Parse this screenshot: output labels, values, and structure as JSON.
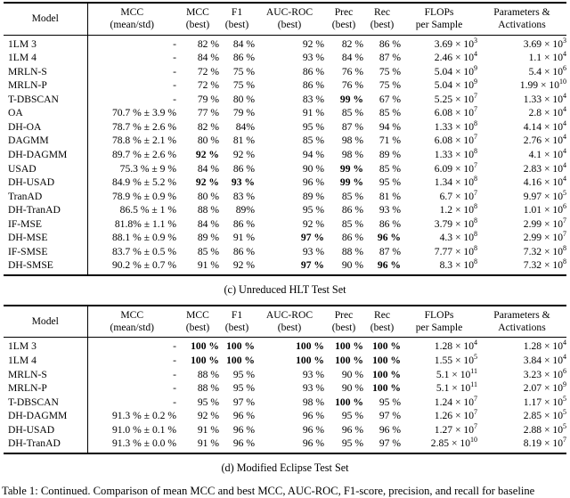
{
  "columns": [
    {
      "l1": "Model",
      "l2": ""
    },
    {
      "l1": "MCC",
      "l2": "(mean/std)"
    },
    {
      "l1": "MCC",
      "l2": "(best)"
    },
    {
      "l1": "F1",
      "l2": "(best)"
    },
    {
      "l1": "AUC-ROC",
      "l2": "(best)"
    },
    {
      "l1": "Prec",
      "l2": "(best)"
    },
    {
      "l1": "Rec",
      "l2": "(best)"
    },
    {
      "l1": "FLOPs",
      "l2": "per Sample"
    },
    {
      "l1": "Parameters &",
      "l2": "Activations"
    }
  ],
  "tables": [
    {
      "caption": "(c) Unreduced HLT Test Set",
      "rows": [
        {
          "cells": [
            "1LM 3",
            "-",
            "82 %",
            "84 %",
            "92 %",
            "82 %",
            "86 %",
            "3.69 × 10^3",
            "3.69 × 10^3"
          ],
          "bold": []
        },
        {
          "cells": [
            "1LM 4",
            "-",
            "84 %",
            "86 %",
            "93 %",
            "84 %",
            "87 %",
            "2.46 × 10^4",
            "1.1 × 10^4"
          ],
          "bold": []
        },
        {
          "cells": [
            "MRLN-S",
            "-",
            "72 %",
            "75 %",
            "86 %",
            "76 %",
            "75 %",
            "5.04 × 10^9",
            "5.4 × 10^6"
          ],
          "bold": []
        },
        {
          "cells": [
            "MRLN-P",
            "-",
            "72 %",
            "75 %",
            "86 %",
            "76 %",
            "75 %",
            "5.04 × 10^9",
            "1.99 × 10^10"
          ],
          "bold": []
        },
        {
          "cells": [
            "T-DBSCAN",
            "-",
            "79 %",
            "80 %",
            "83 %",
            "99 %",
            "67 %",
            "5.25 × 10^7",
            "1.33 × 10^4"
          ],
          "bold": [
            5
          ]
        },
        {
          "cells": [
            "OA",
            "70.7 % ± 3.9 %",
            "77 %",
            "79 %",
            "91 %",
            "85 %",
            "85 %",
            "6.08 × 10^7",
            "2.8 × 10^4"
          ],
          "bold": []
        },
        {
          "cells": [
            "DH-OA",
            "78.7 % ± 2.6 %",
            "82 %",
            "84%",
            "95 %",
            "87 %",
            "94 %",
            "1.33 × 10^8",
            "4.14 × 10^4"
          ],
          "bold": []
        },
        {
          "cells": [
            "DAGMM",
            "78.8 % ± 2.1 %",
            "80 %",
            "81 %",
            "85 %",
            "98 %",
            "71 %",
            "6.08 × 10^7",
            "2.76 × 10^4"
          ],
          "bold": []
        },
        {
          "cells": [
            "DH-DAGMM",
            "89.7 % ± 2.6 %",
            "92 %",
            "92 %",
            "94 %",
            "98 %",
            "89 %",
            "1.33 × 10^8",
            "4.1 × 10^4"
          ],
          "bold": [
            2
          ]
        },
        {
          "cells": [
            "USAD",
            "75.3 % ± 9 %",
            "84 %",
            "86 %",
            "90 %",
            "99 %",
            "85 %",
            "6.09 × 10^7",
            "2.83 × 10^4"
          ],
          "bold": [
            5
          ]
        },
        {
          "cells": [
            "DH-USAD",
            "84.9 % ± 5.2 %",
            "92 %",
            "93 %",
            "96 %",
            "99 %",
            "95 %",
            "1.34 × 10^8",
            "4.16 × 10^4"
          ],
          "bold": [
            2,
            3,
            5
          ]
        },
        {
          "cells": [
            "TranAD",
            "78.9 % ± 0.9 %",
            "80 %",
            "83 %",
            "89 %",
            "85 %",
            "81 %",
            "6.7 × 10^7",
            "9.97 × 10^5"
          ],
          "bold": []
        },
        {
          "cells": [
            "DH-TranAD",
            "86.5 % ± 1 %",
            "88 %",
            "89%",
            "95 %",
            "86 %",
            "93 %",
            "1.2 × 10^8",
            "1.01 × 10^6"
          ],
          "bold": []
        },
        {
          "cells": [
            "IF-MSE",
            "81.8% ± 1.1 %",
            "84 %",
            "86 %",
            "92 %",
            "85 %",
            "86 %",
            "3.79 × 10^8",
            "2.99 × 10^7"
          ],
          "bold": []
        },
        {
          "cells": [
            "DH-MSE",
            "88.1 % ± 0.9 %",
            "89 %",
            "91 %",
            "97 %",
            "86 %",
            "96 %",
            "4.3 × 10^8",
            "2.99 × 10^7"
          ],
          "bold": [
            4,
            6
          ]
        },
        {
          "cells": [
            "IF-SMSE",
            "83.7 % ± 0.5 %",
            "85 %",
            "86 %",
            "93 %",
            "88 %",
            "87 %",
            "7.77 × 10^8",
            "7.32 × 10^8"
          ],
          "bold": []
        },
        {
          "cells": [
            "DH-SMSE",
            "90.2 % ± 0.7 %",
            "91 %",
            "92 %",
            "97 %",
            "90 %",
            "96 %",
            "8.3 × 10^8",
            "7.32 × 10^8"
          ],
          "bold": [
            4,
            6
          ]
        }
      ]
    },
    {
      "caption": "(d) Modified Eclipse Test Set",
      "rows": [
        {
          "cells": [
            "1LM 3",
            "-",
            "100 %",
            "100 %",
            "100 %",
            "100 %",
            "100 %",
            "1.28 × 10^4",
            "1.28 × 10^4"
          ],
          "bold": [
            2,
            3,
            4,
            5,
            6
          ]
        },
        {
          "cells": [
            "1LM 4",
            "-",
            "100 %",
            "100 %",
            "100 %",
            "100 %",
            "100 %",
            "1.55 × 10^5",
            "3.84 × 10^4"
          ],
          "bold": [
            2,
            3,
            4,
            5,
            6
          ]
        },
        {
          "cells": [
            "MRLN-S",
            "-",
            "88 %",
            "95 %",
            "93 %",
            "90 %",
            "100 %",
            "5.1 × 10^11",
            "3.23 × 10^6"
          ],
          "bold": [
            6
          ]
        },
        {
          "cells": [
            "MRLN-P",
            "-",
            "88 %",
            "95 %",
            "93 %",
            "90 %",
            "100 %",
            "5.1 × 10^11",
            "2.07 × 10^9"
          ],
          "bold": [
            6
          ]
        },
        {
          "cells": [
            "T-DBSCAN",
            "-",
            "95 %",
            "97 %",
            "98 %",
            "100 %",
            "95 %",
            "1.24 × 10^7",
            "1.17 × 10^5"
          ],
          "bold": [
            5
          ]
        },
        {
          "cells": [
            "DH-DAGMM",
            "91.3 % ± 0.2 %",
            "92 %",
            "96 %",
            "96 %",
            "95 %",
            "97 %",
            "1.26 × 10^7",
            "2.85 × 10^5"
          ],
          "bold": []
        },
        {
          "cells": [
            "DH-USAD",
            "91.0 % ± 0.1 %",
            "91 %",
            "96 %",
            "96 %",
            "96 %",
            "96 %",
            "1.27 × 10^7",
            "2.88 × 10^5"
          ],
          "bold": []
        },
        {
          "cells": [
            "DH-TranAD",
            "91.3 % ± 0.0 %",
            "91 %",
            "96 %",
            "96 %",
            "95 %",
            "97 %",
            "2.85 × 10^10",
            "8.19 × 10^7"
          ],
          "bold": []
        }
      ]
    }
  ],
  "footer_caption": "Table 1: Continued. Comparison of mean MCC and best MCC, AUC-ROC, F1-score, precision, and recall for baseline"
}
